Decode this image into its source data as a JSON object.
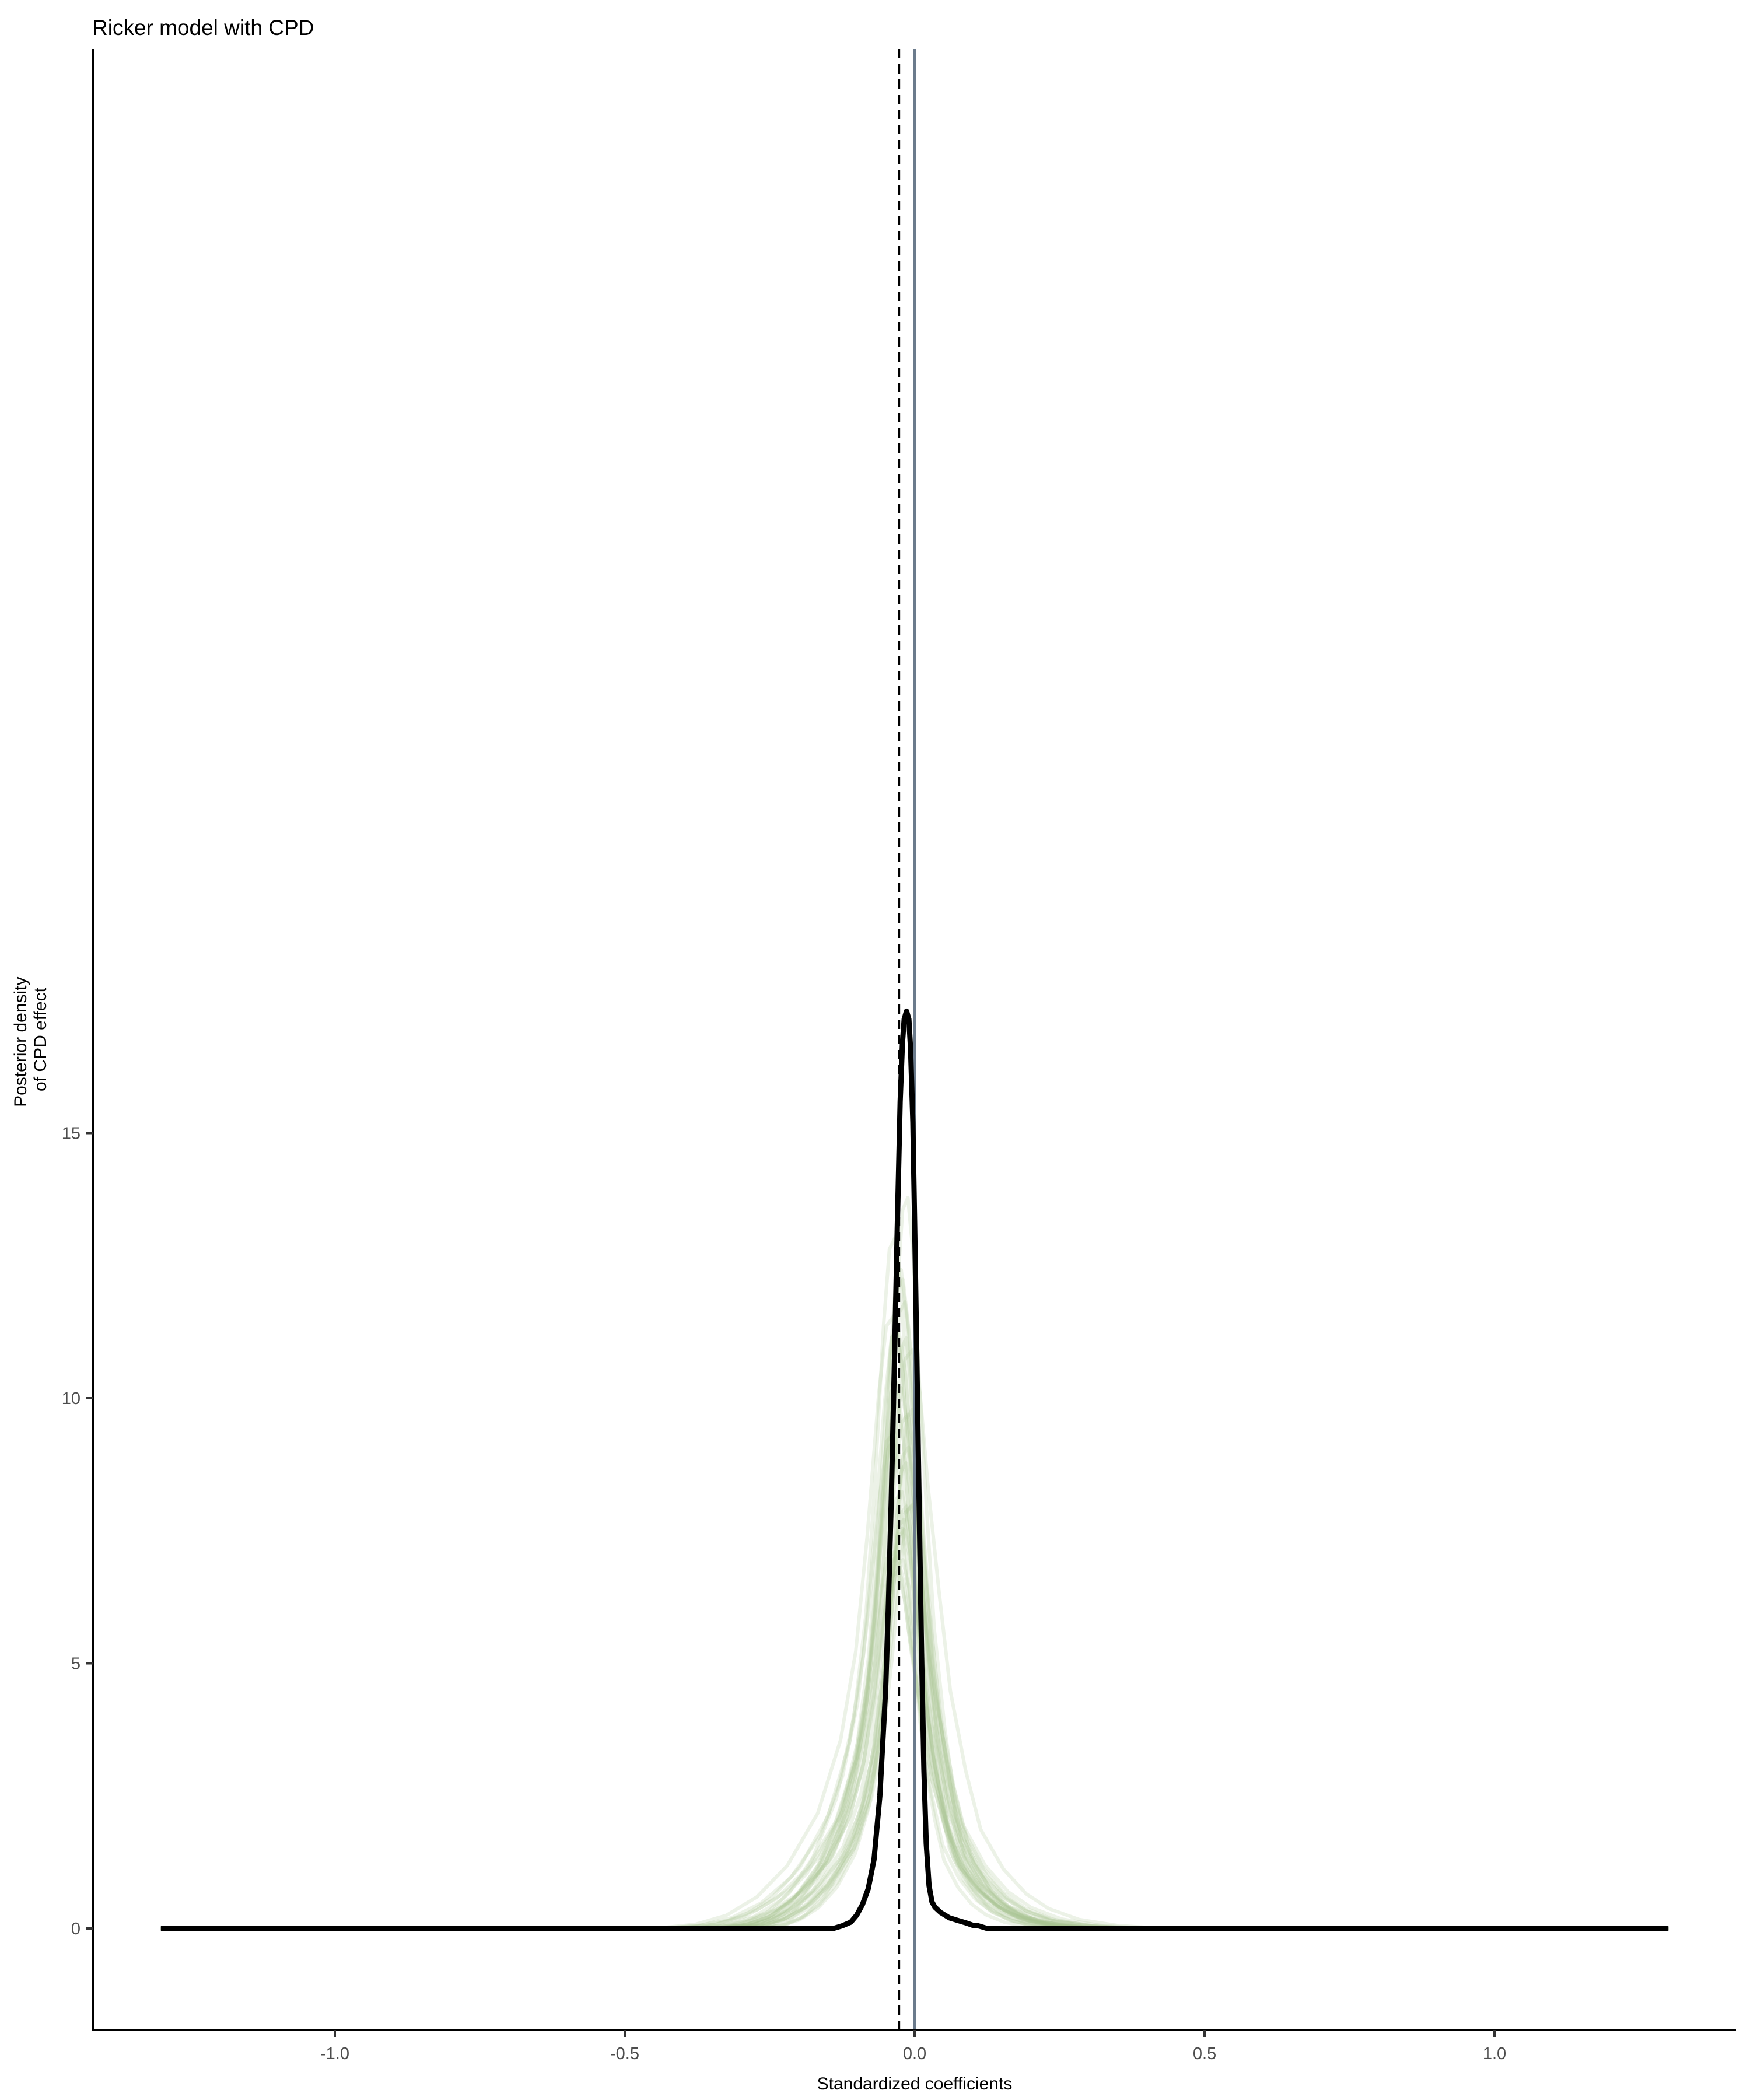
{
  "chart_data": {
    "type": "line",
    "title": "Ricker model with CPD",
    "xlabel": "Standardized coefficients",
    "ylabel": [
      "Posterior density",
      "of CPD effect"
    ],
    "xlim": [
      -1.3,
      1.3
    ],
    "ylim": [
      -0.8,
      18.6
    ],
    "x_ticks": [
      -1.0,
      -0.5,
      0.0,
      0.5,
      1.0
    ],
    "x_tick_labels": [
      "-1.0",
      "-0.5",
      "0.0",
      "0.5",
      "1.0"
    ],
    "y_ticks": [
      0,
      5,
      10,
      15
    ],
    "y_tick_labels": [
      "0",
      "5",
      "10",
      "15"
    ],
    "grid": false,
    "reference_lines": [
      {
        "type": "vertical",
        "x": -0.027,
        "style": "dashed",
        "color": "#000000"
      },
      {
        "type": "vertical",
        "x": 0.0,
        "style": "solid",
        "color": "#6b7b8c"
      }
    ],
    "series": [
      {
        "style": "posterior-predictive-draws",
        "color": "#a9c391",
        "draw_count": 30,
        "shape_reference": [
          [
            -1.3,
            0
          ],
          [
            -0.36,
            0.0
          ],
          [
            -0.32,
            0.02
          ],
          [
            -0.28,
            0.08
          ],
          [
            -0.24,
            0.25
          ],
          [
            -0.2,
            0.6
          ],
          [
            -0.16,
            1.2
          ],
          [
            -0.12,
            2.2
          ],
          [
            -0.09,
            3.6
          ],
          [
            -0.07,
            5.3
          ],
          [
            -0.055,
            7.5
          ],
          [
            -0.04,
            10.2
          ],
          [
            -0.03,
            11.5
          ],
          [
            -0.02,
            11.7
          ],
          [
            -0.01,
            10.8
          ],
          [
            0.0,
            9.0
          ],
          [
            0.015,
            6.8
          ],
          [
            0.03,
            4.8
          ],
          [
            0.05,
            3.2
          ],
          [
            0.07,
            2.0
          ],
          [
            0.1,
            1.2
          ],
          [
            0.13,
            0.7
          ],
          [
            0.16,
            0.4
          ],
          [
            0.2,
            0.18
          ],
          [
            0.25,
            0.06
          ],
          [
            0.3,
            0.01
          ],
          [
            1.3,
            0
          ]
        ]
      },
      {
        "style": "observed",
        "color": "#000000",
        "points": [
          [
            -1.3,
            0
          ],
          [
            -0.14,
            0
          ],
          [
            -0.125,
            0.05
          ],
          [
            -0.11,
            0.12
          ],
          [
            -0.1,
            0.25
          ],
          [
            -0.09,
            0.45
          ],
          [
            -0.08,
            0.75
          ],
          [
            -0.07,
            1.3
          ],
          [
            -0.06,
            2.5
          ],
          [
            -0.05,
            4.5
          ],
          [
            -0.045,
            6.2
          ],
          [
            -0.04,
            8.2
          ],
          [
            -0.035,
            10.6
          ],
          [
            -0.03,
            13.2
          ],
          [
            -0.025,
            15.6
          ],
          [
            -0.021,
            16.7
          ],
          [
            -0.018,
            17.15
          ],
          [
            -0.014,
            17.3
          ],
          [
            -0.01,
            17.15
          ],
          [
            -0.007,
            16.6
          ],
          [
            -0.003,
            15.2
          ],
          [
            0.0,
            13.3
          ],
          [
            0.004,
            10.6
          ],
          [
            0.008,
            7.8
          ],
          [
            0.012,
            5.2
          ],
          [
            0.016,
            3.0
          ],
          [
            0.02,
            1.6
          ],
          [
            0.025,
            0.8
          ],
          [
            0.03,
            0.5
          ],
          [
            0.035,
            0.4
          ],
          [
            0.045,
            0.3
          ],
          [
            0.06,
            0.2
          ],
          [
            0.075,
            0.15
          ],
          [
            0.09,
            0.1
          ],
          [
            0.1,
            0.06
          ],
          [
            0.11,
            0.05
          ],
          [
            0.125,
            0
          ],
          [
            1.3,
            0
          ]
        ]
      }
    ]
  }
}
